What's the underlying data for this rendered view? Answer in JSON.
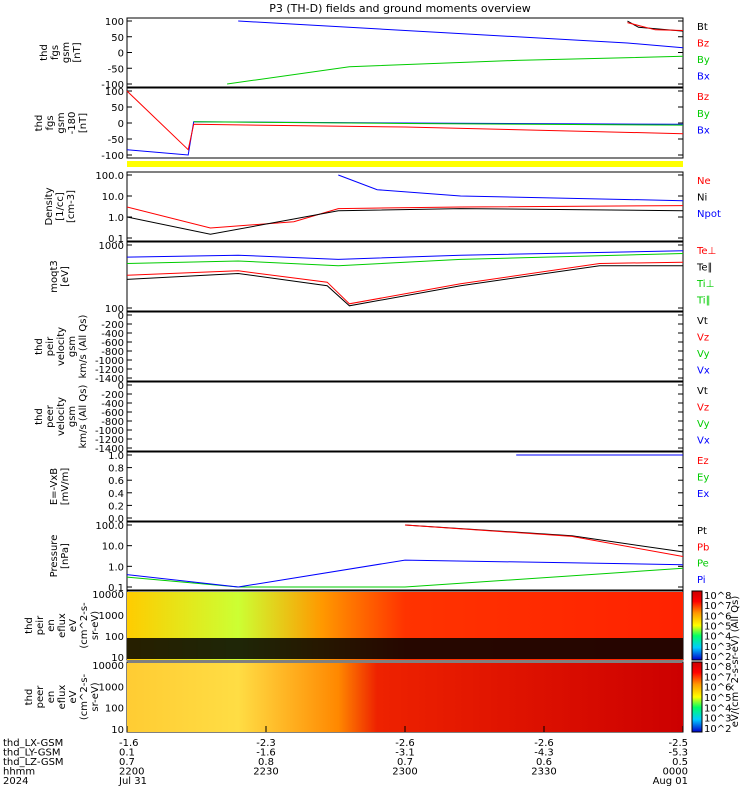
{
  "title": "P3 (TH-D) fields and ground moments overview",
  "colors": {
    "black": "#000000",
    "red": "#ff0000",
    "green": "#00cc00",
    "blue": "#0000ff",
    "yellow": "#ffff00"
  },
  "panels": [
    {
      "id": "fgs_gsm",
      "ylabel": [
        "thd",
        "fgs",
        "gsm",
        "[nT]"
      ],
      "ticks": [
        "100",
        "50",
        "0",
        "-50",
        "-100"
      ],
      "legend": [
        {
          "t": "Bt",
          "c": "black"
        },
        {
          "t": "Bz",
          "c": "red"
        },
        {
          "t": "By",
          "c": "green"
        },
        {
          "t": "Bx",
          "c": "blue"
        }
      ]
    },
    {
      "id": "fgs_gse",
      "ylabel": [
        "thd",
        "fgs",
        "gsm",
        "-180",
        "[nT]"
      ],
      "ticks": [
        "100",
        "50",
        "0",
        "-50",
        "-100"
      ],
      "legend": [
        {
          "t": "Bz",
          "c": "red"
        },
        {
          "t": "By",
          "c": "green"
        },
        {
          "t": "Bx",
          "c": "blue"
        }
      ]
    },
    {
      "id": "density",
      "ylabel": [
        "Density",
        "[1/cc]",
        "[cm-3]"
      ],
      "ticks": [
        "100.0",
        "10.0",
        "1.0",
        "0.1"
      ],
      "legend": [
        {
          "t": "Ne",
          "c": "red"
        },
        {
          "t": "Ni",
          "c": "black"
        },
        {
          "t": "Npot",
          "c": "blue"
        }
      ]
    },
    {
      "id": "temperature",
      "ylabel": [
        "moqt3",
        "[eV]"
      ],
      "ticks": [
        "1000",
        "100"
      ],
      "legend": [
        {
          "t": "Te⊥",
          "c": "red"
        },
        {
          "t": "Te∥",
          "c": "black"
        },
        {
          "t": "Ti⊥",
          "c": "green"
        },
        {
          "t": "Ti∥",
          "c": "green"
        }
      ]
    },
    {
      "id": "peir_vel",
      "ylabel": [
        "thd",
        "peir",
        "velocity",
        "gsm",
        "km/s (All Qs)"
      ],
      "ticks": [
        "0",
        "-200",
        "-400",
        "-600",
        "-800",
        "-1000",
        "-1200",
        "-1400"
      ],
      "legend": [
        {
          "t": "Vt",
          "c": "black"
        },
        {
          "t": "Vz",
          "c": "red"
        },
        {
          "t": "Vy",
          "c": "green"
        },
        {
          "t": "Vx",
          "c": "blue"
        }
      ]
    },
    {
      "id": "peer_vel",
      "ylabel": [
        "thd",
        "peer",
        "velocity",
        "gsm",
        "km/s (All Qs)"
      ],
      "ticks": [
        "0",
        "-200",
        "-400",
        "-600",
        "-800",
        "-1000",
        "-1200",
        "-1400"
      ],
      "legend": [
        {
          "t": "Vt",
          "c": "black"
        },
        {
          "t": "Vz",
          "c": "red"
        },
        {
          "t": "Vy",
          "c": "green"
        },
        {
          "t": "Vx",
          "c": "blue"
        }
      ]
    },
    {
      "id": "efield",
      "ylabel": [
        "E=-VxB",
        "[mV/m]"
      ],
      "ticks": [
        "1.0",
        "0.8",
        "0.6",
        "0.4",
        "0.2",
        "0.0"
      ],
      "legend": [
        {
          "t": "Ez",
          "c": "red"
        },
        {
          "t": "Ey",
          "c": "green"
        },
        {
          "t": "Ex",
          "c": "blue"
        }
      ]
    },
    {
      "id": "pressure",
      "ylabel": [
        "Pressure",
        "[nPa]"
      ],
      "ticks": [
        "100.0",
        "10.0",
        "1.0",
        "0.1"
      ],
      "legend": [
        {
          "t": "Pt",
          "c": "black"
        },
        {
          "t": "Pb",
          "c": "red"
        },
        {
          "t": "Pe",
          "c": "green"
        },
        {
          "t": "Pi",
          "c": "blue"
        }
      ]
    },
    {
      "id": "peir_eflux",
      "ylabel": [
        "thd",
        "peir",
        "en",
        "eflux",
        "eV",
        "(cm^2-s-",
        "sr-eV)"
      ],
      "ticks": [
        "10000",
        "1000",
        "100",
        "10"
      ]
    },
    {
      "id": "peer_eflux",
      "ylabel": [
        "thd",
        "peer",
        "en",
        "eflux",
        "eV",
        "(cm^2-s-",
        "sr-eV)"
      ],
      "ticks": [
        "10000",
        "1000",
        "100",
        "10"
      ]
    }
  ],
  "colorbar": {
    "label": "eV/(cm^2-s-sr-eV) (All Qs)",
    "ticks": [
      "10^8",
      "10^7",
      "10^6",
      "10^5",
      "10^4",
      "10^3",
      "10^2"
    ]
  },
  "xaxis": {
    "rows": [
      {
        "label": "thd_LX-GSM",
        "values": [
          "-1.6",
          "-2.3",
          "-2.6",
          "-2.6",
          "-2.5"
        ]
      },
      {
        "label": "thd_LY-GSM",
        "values": [
          "0.1",
          "-1.6",
          "-3.1",
          "-4.3",
          "-5.3"
        ]
      },
      {
        "label": "thd_LZ-GSM",
        "values": [
          "0.7",
          "0.8",
          "0.7",
          "0.6",
          "0.5"
        ]
      },
      {
        "label": "hhmm",
        "values": [
          "2200",
          "2230",
          "2300",
          "2330",
          "0000"
        ]
      },
      {
        "label": "2024",
        "values": [
          "Jul 31",
          "",
          "",
          "",
          "Aug 01"
        ]
      }
    ]
  },
  "chart_data": {
    "type": "line",
    "title": "P3 (TH-D) fields and ground moments overview",
    "x": [
      "2200",
      "2230",
      "2300",
      "2330",
      "0000"
    ],
    "series": [
      {
        "name": "Bt",
        "panel": "fgs_gsm",
        "points": [
          [
            0.9,
            100
          ],
          [
            0.92,
            80
          ],
          [
            1.0,
            68
          ]
        ]
      },
      {
        "name": "Bz",
        "panel": "fgs_gsm",
        "points": [
          [
            0.9,
            95
          ],
          [
            0.95,
            72
          ],
          [
            1.0,
            70
          ]
        ]
      },
      {
        "name": "By",
        "panel": "fgs_gsm",
        "points": [
          [
            0.18,
            -100
          ],
          [
            0.4,
            -45
          ],
          [
            0.7,
            -25
          ],
          [
            1.0,
            -12
          ]
        ]
      },
      {
        "name": "Bx",
        "panel": "fgs_gsm",
        "points": [
          [
            0.2,
            100
          ],
          [
            0.6,
            60
          ],
          [
            0.9,
            30
          ],
          [
            1.0,
            15
          ]
        ]
      },
      {
        "name": "Ne",
        "panel": "density",
        "points": [
          [
            0,
            3.0
          ],
          [
            0.15,
            0.3
          ],
          [
            0.3,
            0.6
          ],
          [
            0.38,
            2.5
          ],
          [
            0.6,
            3.0
          ],
          [
            1.0,
            3.5
          ]
        ]
      },
      {
        "name": "Ni",
        "panel": "density",
        "points": [
          [
            0,
            1.0
          ],
          [
            0.15,
            0.15
          ],
          [
            0.3,
            0.8
          ],
          [
            0.38,
            2.0
          ],
          [
            0.6,
            2.5
          ],
          [
            1.0,
            2.0
          ]
        ]
      },
      {
        "name": "Npot",
        "panel": "density",
        "points": [
          [
            0.38,
            100
          ],
          [
            0.45,
            20
          ],
          [
            0.6,
            10
          ],
          [
            1.0,
            6
          ]
        ]
      },
      {
        "name": "Pt",
        "panel": "pressure",
        "points": [
          [
            0.5,
            100
          ],
          [
            0.8,
            30
          ],
          [
            1.0,
            5
          ]
        ]
      },
      {
        "name": "Pb",
        "panel": "pressure",
        "points": [
          [
            0.5,
            100
          ],
          [
            0.8,
            28
          ],
          [
            1.0,
            3
          ]
        ]
      },
      {
        "name": "Pe",
        "panel": "pressure",
        "points": [
          [
            0,
            0.3
          ],
          [
            0.2,
            0.05
          ],
          [
            0.5,
            0.1
          ],
          [
            1.0,
            0.8
          ]
        ]
      },
      {
        "name": "Pi",
        "panel": "pressure",
        "points": [
          [
            0,
            0.4
          ],
          [
            0.2,
            0.04
          ],
          [
            0.5,
            2.0
          ],
          [
            1.0,
            1.2
          ]
        ]
      }
    ]
  }
}
